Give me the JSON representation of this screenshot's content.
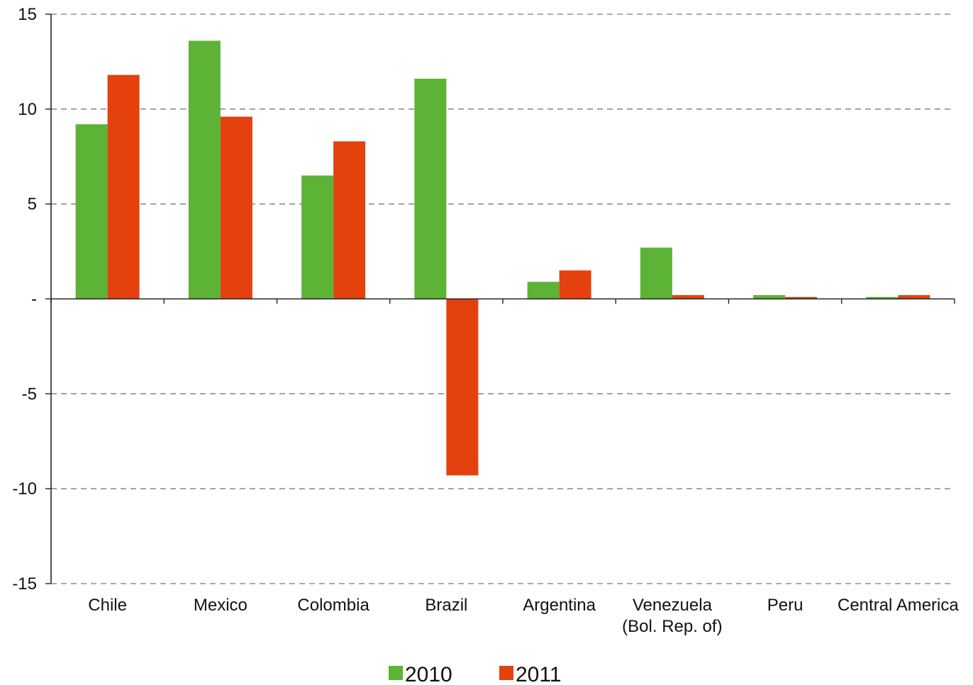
{
  "chart_data": {
    "type": "bar",
    "title": "",
    "xlabel": "",
    "ylabel": "",
    "ylim": [
      -15,
      15
    ],
    "y_ticks": [
      15,
      10,
      5,
      0,
      -5,
      -10,
      -15
    ],
    "y_tick_labels": [
      "15",
      "10",
      "5",
      "-",
      "-5",
      "-10",
      "-15"
    ],
    "grid": true,
    "legend_position": "bottom-center",
    "categories": [
      [
        "Chile"
      ],
      [
        "Mexico"
      ],
      [
        "Colombia"
      ],
      [
        "Brazil"
      ],
      [
        "Argentina"
      ],
      [
        "Venezuela",
        "(Bol. Rep. of)"
      ],
      [
        "Peru"
      ],
      [
        "Central America"
      ]
    ],
    "series": [
      {
        "name": "2010",
        "color": "#5db336",
        "values": [
          9.2,
          13.6,
          6.5,
          11.6,
          0.9,
          2.7,
          0.2,
          0.1
        ]
      },
      {
        "name": "2011",
        "color": "#e5410e",
        "values": [
          11.8,
          9.6,
          8.3,
          -9.3,
          1.5,
          0.2,
          0.1,
          0.2
        ]
      }
    ]
  }
}
